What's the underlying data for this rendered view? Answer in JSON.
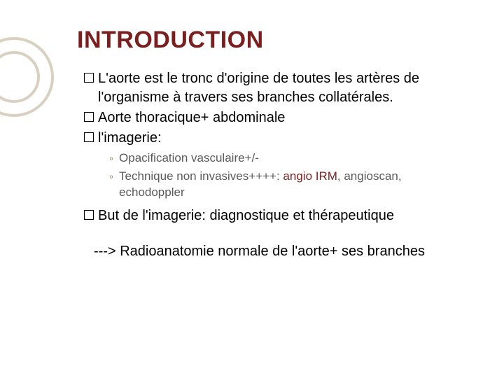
{
  "colors": {
    "title": "#7a1f1f",
    "body_text": "#000000",
    "sub_marker": "#9a6b3a",
    "sub_text": "#5a5a5a",
    "accent": "#7a1f1f",
    "deco_stroke": "#d8d0c0",
    "background": "#ffffff"
  },
  "typography": {
    "title_fontsize": 34,
    "title_weight": "bold",
    "body_fontsize": 20,
    "sub_fontsize": 17,
    "conclusion_fontsize": 20,
    "font_family": "Arial"
  },
  "deco": {
    "outer_r": 55,
    "inner_r": 35,
    "stroke_width": 4
  },
  "title": "INTRODUCTION",
  "bullets": [
    {
      "text": "L'aorte est le tronc d'origine de toutes les artères de l'organisme à travers ses branches collatérales."
    },
    {
      "text": "Aorte thoracique+ abdominale"
    },
    {
      "text": "l'imagerie:"
    }
  ],
  "sub_bullets": [
    {
      "text": "Opacification vasculaire+/-"
    },
    {
      "prefix": "Technique non invasives++++:  ",
      "accent": "angio IRM",
      "suffix": ", angioscan, echodoppler"
    }
  ],
  "bullet_last": {
    "text": "But de l'imagerie: diagnostique et thérapeutique"
  },
  "conclusion": "---> Radioanatomie normale de l'aorte+ ses branches"
}
